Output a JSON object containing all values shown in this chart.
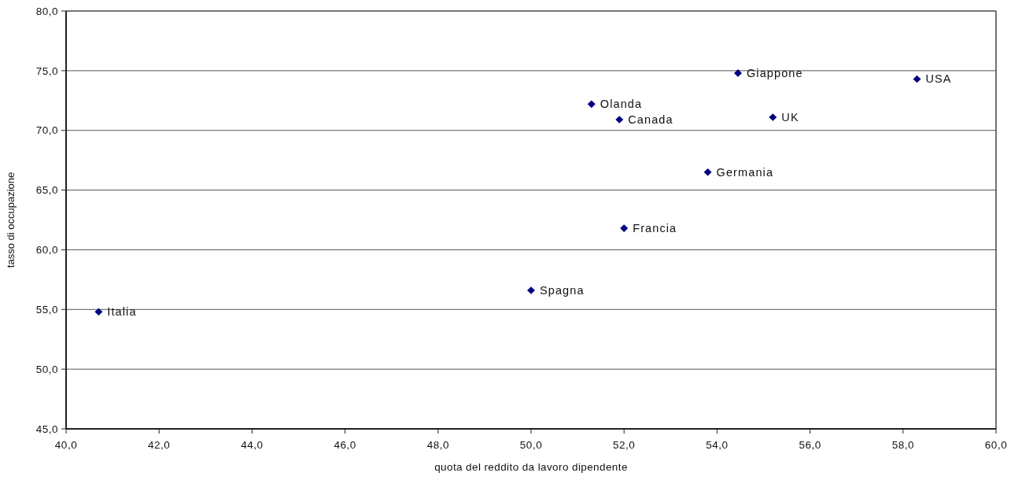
{
  "chart_data": {
    "type": "scatter",
    "xlabel": "quota del reddito da lavoro dipendente",
    "ylabel": "tasso di occupazione",
    "series": [
      {
        "color": "#000080",
        "x": [
          40.7,
          50.0,
          52.0,
          53.8,
          51.9,
          51.3,
          54.45,
          55.2,
          58.3
        ],
        "values": [
          54.8,
          56.6,
          61.8,
          66.5,
          70.9,
          72.2,
          74.8,
          71.1,
          74.3
        ]
      }
    ],
    "annotations": [
      {
        "text": "Italia",
        "x": 40.7,
        "y": 54.8
      },
      {
        "text": "Spagna",
        "x": 50.0,
        "y": 56.6
      },
      {
        "text": "Francia",
        "x": 52.0,
        "y": 61.8
      },
      {
        "text": "Germania",
        "x": 53.8,
        "y": 66.5
      },
      {
        "text": "Canada",
        "x": 51.9,
        "y": 70.9
      },
      {
        "text": "Olanda",
        "x": 51.3,
        "y": 72.2
      },
      {
        "text": "Giappone",
        "x": 54.45,
        "y": 74.8
      },
      {
        "text": "UK",
        "x": 55.2,
        "y": 71.1
      },
      {
        "text": "USA",
        "x": 58.3,
        "y": 74.3
      }
    ],
    "xlim": [
      40,
      60
    ],
    "xticks": [
      {
        "value": 40,
        "label": "40,0"
      },
      {
        "value": 42,
        "label": "42,0"
      },
      {
        "value": 44,
        "label": "44,0"
      },
      {
        "value": 46,
        "label": "46,0"
      },
      {
        "value": 48,
        "label": "48,0"
      },
      {
        "value": 50,
        "label": "50,0"
      },
      {
        "value": 52,
        "label": "52,0"
      },
      {
        "value": 54,
        "label": "54,0"
      },
      {
        "value": 56,
        "label": "56,0"
      },
      {
        "value": 58,
        "label": "58,0"
      },
      {
        "value": 60,
        "label": "60,0"
      }
    ],
    "ylim": [
      45,
      80
    ],
    "yticks": [
      {
        "value": 45,
        "label": "45,0"
      },
      {
        "value": 50,
        "label": "50,0"
      },
      {
        "value": 55,
        "label": "55,0"
      },
      {
        "value": 60,
        "label": "60,0"
      },
      {
        "value": 65,
        "label": "65,0"
      },
      {
        "value": 70,
        "label": "70,0"
      },
      {
        "value": 75,
        "label": "75,0"
      },
      {
        "value": 80,
        "label": "80,0"
      }
    ],
    "grid": "y",
    "marker": "diamond"
  }
}
